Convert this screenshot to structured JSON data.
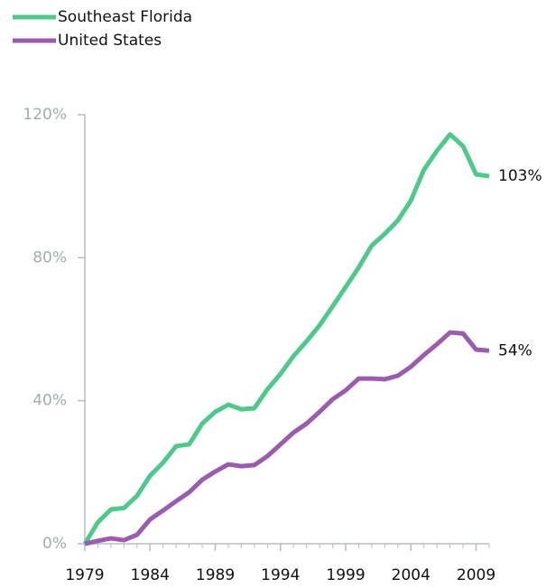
{
  "chart_data": {
    "type": "line",
    "x": [
      1979,
      1980,
      1981,
      1982,
      1983,
      1984,
      1985,
      1986,
      1987,
      1988,
      1989,
      1990,
      1991,
      1992,
      1993,
      1994,
      1995,
      1996,
      1997,
      1998,
      1999,
      2000,
      2001,
      2002,
      2003,
      2004,
      2005,
      2006,
      2007,
      2008,
      2009,
      2010
    ],
    "series": [
      {
        "name": "Southeast Florida",
        "color": "#4ec98c",
        "end_label": "103%",
        "values": [
          0,
          6,
          9.6,
          10,
          13.4,
          19,
          22.7,
          27.3,
          27.8,
          33.6,
          36.9,
          38.9,
          37.6,
          37.9,
          43.2,
          47.5,
          52.5,
          56.6,
          61.1,
          66.4,
          71.8,
          77.3,
          83.4,
          86.7,
          90.4,
          96,
          104.6,
          109.9,
          114.5,
          111.2,
          103.3,
          102.8
        ]
      },
      {
        "name": "United States",
        "color": "#9a5cae",
        "end_label": "54%",
        "values": [
          0,
          0.8,
          1.5,
          1,
          2.5,
          6.8,
          9.3,
          11.9,
          14.4,
          17.9,
          20.2,
          22.2,
          21.7,
          22,
          24.5,
          27.8,
          31.1,
          33.6,
          36.9,
          40.4,
          42.9,
          46.2,
          46.2,
          46,
          47,
          49.5,
          52.8,
          55.8,
          59.1,
          58.8,
          54.3,
          54
        ]
      }
    ],
    "xlim": [
      1979,
      2010
    ],
    "xticks": [
      1979,
      1984,
      1989,
      1994,
      1999,
      2004,
      2009
    ],
    "ylim": [
      0,
      120
    ],
    "yticks": [
      {
        "value": 0,
        "label": "0%"
      },
      {
        "value": 40,
        "label": "40%"
      },
      {
        "value": 80,
        "label": "80%"
      },
      {
        "value": 120,
        "label": "120%"
      }
    ],
    "grid": false
  }
}
